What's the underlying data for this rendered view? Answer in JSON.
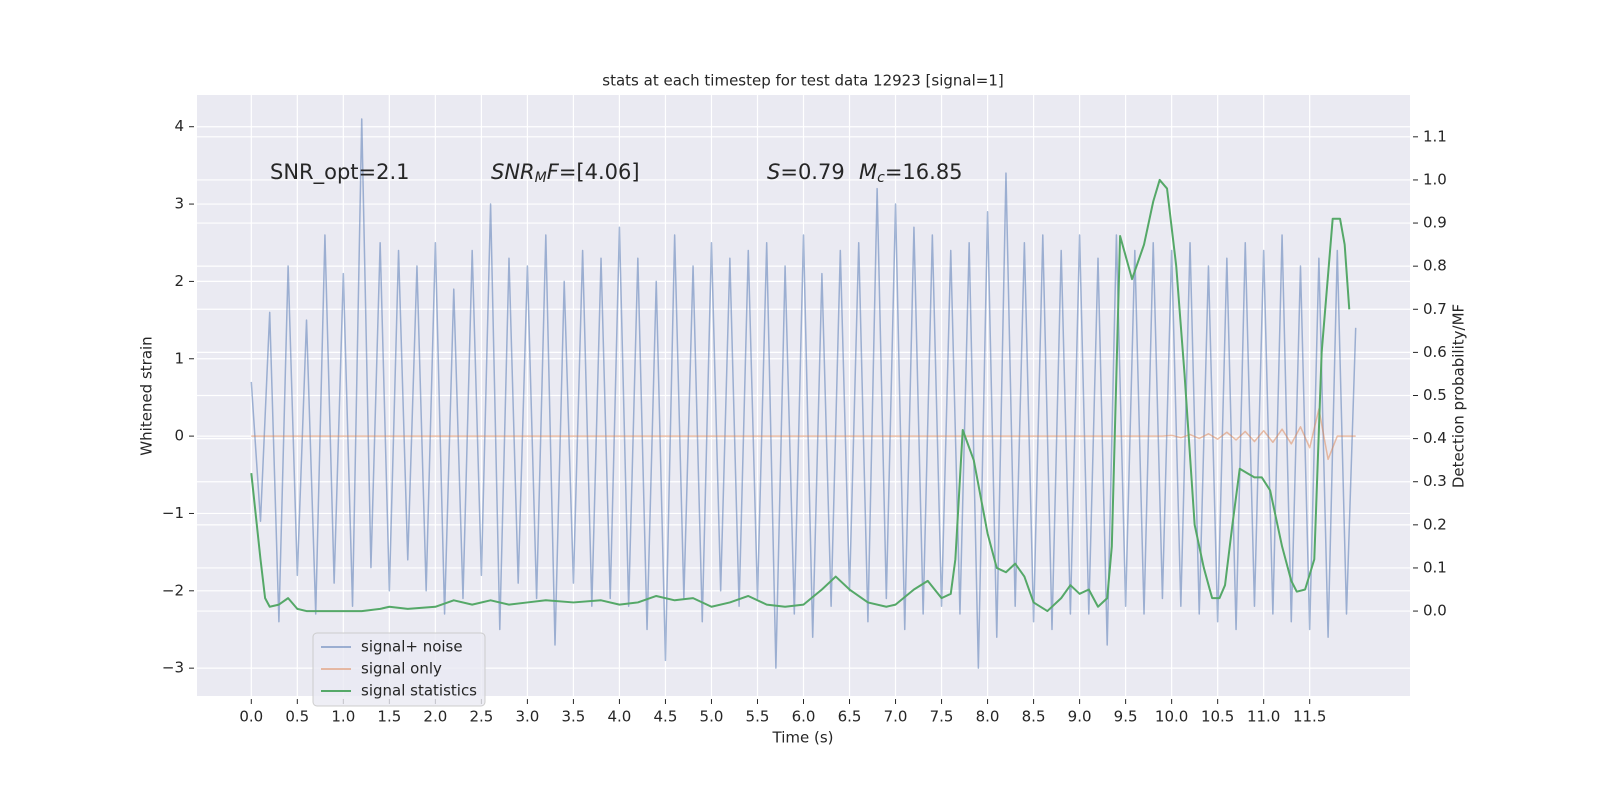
{
  "chart_data": {
    "type": "line",
    "title": "stats at each timestep for test data 12923 [signal=1]",
    "xlabel": "Time (s)",
    "ylabel": "Whitened strain",
    "y2label": "Detection probability/MF",
    "xlim": [
      -0.59,
      12.59
    ],
    "ylim": [
      -3.36,
      4.41
    ],
    "y2lim": [
      -0.197,
      1.197
    ],
    "grid": true,
    "legend": "lower left",
    "xticks": [
      {
        "value": 0,
        "label": "0.0"
      },
      0.5,
      {
        "value": 1,
        "label": "1.0"
      },
      1.5,
      {
        "value": 2,
        "label": "2.0"
      },
      2.5,
      {
        "value": 3,
        "label": "3.0"
      },
      3.5,
      {
        "value": 4,
        "label": "4.0"
      },
      4.5,
      {
        "value": 5,
        "label": "5.0"
      },
      5.5,
      {
        "value": 6,
        "label": "6.0"
      },
      6.5,
      {
        "value": 7,
        "label": "7.0"
      },
      7.5,
      {
        "value": 8,
        "label": "8.0"
      },
      8.5,
      {
        "value": 9,
        "label": "9.0"
      },
      9.5,
      {
        "value": 10,
        "label": "10.0"
      },
      10.5,
      {
        "value": 11,
        "label": "11.0"
      },
      11.5
    ],
    "yticks": [
      {
        "value": -3,
        "label": "−3"
      },
      {
        "value": -2,
        "label": "−2"
      },
      {
        "value": -1,
        "label": "−1"
      },
      0,
      1,
      2,
      3,
      4
    ],
    "y2ticks": [
      {
        "value": 0,
        "label": "0.0"
      },
      0.1,
      0.2,
      0.3,
      0.4,
      0.5,
      0.6,
      0.7,
      0.8,
      0.9,
      {
        "value": 1,
        "label": "1.0"
      },
      1.1
    ],
    "annotations": [
      [
        {
          "text": "SNR_opt=2.1",
          "style": "normal"
        }
      ],
      [
        {
          "text": "SNR",
          "style": "italic"
        },
        {
          "text": "M",
          "style": "sub"
        },
        {
          "text": "F",
          "style": "italic"
        },
        {
          "text": "=[4.06]",
          "style": "normal"
        }
      ],
      [
        {
          "text": "S",
          "style": "italic"
        },
        {
          "text": "=0.79",
          "style": "normal"
        }
      ],
      [
        {
          "text": "M",
          "style": "italic"
        },
        {
          "text": "c",
          "style": "sub"
        },
        {
          "text": "=16.85",
          "style": "normal"
        }
      ]
    ],
    "series": [
      {
        "name": "signal+ noise",
        "color": "#4c72b0",
        "opacity": 0.5,
        "x": [
          0,
          0.1,
          0.2,
          0.3,
          0.4,
          0.5,
          0.6,
          0.7,
          0.8,
          0.9,
          1,
          1.1,
          1.2,
          1.3,
          1.4,
          1.5,
          1.6,
          1.7,
          1.8,
          1.9,
          2,
          2.1,
          2.2,
          2.3,
          2.4,
          2.5,
          2.6,
          2.7,
          2.8,
          2.9,
          3,
          3.1,
          3.2,
          3.3,
          3.4,
          3.5,
          3.6,
          3.7,
          3.8,
          3.9,
          4,
          4.1,
          4.2,
          4.3,
          4.4,
          4.5,
          4.6,
          4.7,
          4.8,
          4.9,
          5,
          5.1,
          5.2,
          5.3,
          5.4,
          5.5,
          5.6,
          5.7,
          5.8,
          5.9,
          6,
          6.1,
          6.2,
          6.3,
          6.4,
          6.5,
          6.6,
          6.7,
          6.8,
          6.9,
          7,
          7.1,
          7.2,
          7.3,
          7.4,
          7.5,
          7.6,
          7.7,
          7.8,
          7.9,
          8,
          8.1,
          8.2,
          8.3,
          8.4,
          8.5,
          8.6,
          8.7,
          8.8,
          8.9,
          9,
          9.1,
          9.2,
          9.3,
          9.4,
          9.5,
          9.6,
          9.7,
          9.8,
          9.9,
          10,
          10.1,
          10.2,
          10.3,
          10.4,
          10.5,
          10.6,
          10.7,
          10.8,
          10.9,
          11,
          11.1,
          11.2,
          11.3,
          11.4,
          11.5,
          11.6,
          11.7,
          11.8,
          11.9,
          12
        ],
        "values": [
          0.7,
          -1.1,
          1.6,
          -2.4,
          2.2,
          -1.8,
          1.5,
          -2.3,
          2.6,
          -1.9,
          2.1,
          -2.2,
          4.1,
          -1.7,
          2.5,
          -2.0,
          2.4,
          -1.6,
          2.2,
          -2.0,
          2.5,
          -2.3,
          1.9,
          -2.1,
          2.4,
          -1.8,
          3.0,
          -2.5,
          2.3,
          -1.9,
          2.2,
          -2.1,
          2.6,
          -2.7,
          2.0,
          -1.9,
          2.4,
          -2.2,
          2.3,
          -2.1,
          2.7,
          -2.2,
          2.3,
          -2.5,
          2.0,
          -2.9,
          2.6,
          -2.1,
          2.2,
          -2.4,
          2.5,
          -2.0,
          2.3,
          -2.2,
          2.4,
          -2.1,
          2.5,
          -3.0,
          2.2,
          -2.3,
          2.6,
          -2.6,
          2.1,
          -2.2,
          2.4,
          -2.0,
          2.5,
          -2.4,
          3.2,
          -2.1,
          3.0,
          -2.5,
          2.7,
          -2.3,
          2.6,
          -2.2,
          2.4,
          -2.3,
          2.5,
          -3.0,
          2.9,
          -2.6,
          3.4,
          -2.2,
          2.5,
          -2.4,
          2.6,
          -2.5,
          2.4,
          -2.3,
          2.6,
          -2.3,
          2.3,
          -2.7,
          2.6,
          -2.2,
          2.4,
          -2.3,
          2.5,
          -2.1,
          2.4,
          -2.2,
          2.5,
          -2.3,
          2.2,
          -2.4,
          2.3,
          -2.5,
          2.5,
          -2.2,
          2.4,
          -2.3,
          2.6,
          -2.4,
          2.2,
          -2.5,
          2.3,
          -2.6,
          2.4,
          -2.3,
          1.4
        ]
      },
      {
        "name": "signal only",
        "color": "#dd8452",
        "opacity": 0.5,
        "x": [
          0,
          0.1,
          0.2,
          0.3,
          0.4,
          0.5,
          0.6,
          0.7,
          0.8,
          0.9,
          1,
          1.1,
          1.2,
          1.3,
          1.4,
          1.5,
          1.6,
          1.7,
          1.8,
          1.9,
          2,
          2.1,
          2.2,
          2.3,
          2.4,
          2.5,
          2.6,
          2.7,
          2.8,
          2.9,
          3,
          3.1,
          3.2,
          3.3,
          3.4,
          3.5,
          3.6,
          3.7,
          3.8,
          3.9,
          4,
          4.1,
          4.2,
          4.3,
          4.4,
          4.5,
          4.6,
          4.7,
          4.8,
          4.9,
          5,
          5.1,
          5.2,
          5.3,
          5.4,
          5.5,
          5.6,
          5.7,
          5.8,
          5.9,
          6,
          6.1,
          6.2,
          6.3,
          6.4,
          6.5,
          6.6,
          6.7,
          6.8,
          6.9,
          7,
          7.1,
          7.2,
          7.3,
          7.4,
          7.5,
          7.6,
          7.7,
          7.8,
          7.9,
          8,
          8.1,
          8.2,
          8.3,
          8.4,
          8.5,
          8.6,
          8.7,
          8.8,
          8.9,
          9,
          9.1,
          9.2,
          9.3,
          9.4,
          9.5,
          9.6,
          9.7,
          9.8,
          9.9,
          10,
          10.1,
          10.2,
          10.3,
          10.4,
          10.5,
          10.6,
          10.7,
          10.8,
          10.9,
          11,
          11.1,
          11.2,
          11.3,
          11.4,
          11.5,
          11.6,
          11.7,
          11.8,
          11.9,
          12
        ],
        "values": [
          0,
          0,
          0,
          0,
          0,
          0,
          0,
          0,
          0,
          0,
          0,
          0,
          0,
          0,
          0,
          0,
          0,
          0,
          0,
          0,
          0,
          0,
          0,
          0,
          0,
          0,
          0,
          0,
          0,
          0,
          0,
          0,
          0,
          0,
          0,
          0,
          0,
          0,
          0,
          0,
          0,
          0,
          0,
          0,
          0,
          0,
          0,
          0,
          0,
          0,
          0,
          0,
          0,
          0,
          0,
          0,
          0,
          0,
          0,
          0,
          0,
          0,
          0,
          0,
          0,
          0,
          0,
          0,
          0,
          0,
          0,
          0,
          0,
          0,
          0,
          0,
          0,
          0,
          0,
          0,
          0,
          0,
          0,
          0,
          0,
          0,
          0,
          0,
          0,
          0,
          0,
          0,
          0,
          0,
          0,
          0,
          0,
          0,
          0,
          0,
          0.01,
          -0.02,
          0.02,
          -0.03,
          0.03,
          -0.04,
          0.05,
          -0.05,
          0.06,
          -0.07,
          0.07,
          -0.08,
          0.09,
          -0.1,
          0.12,
          -0.15,
          0.35,
          -0.3,
          0,
          0,
          0
        ]
      },
      {
        "name": "signal statistics",
        "color": "#55a868",
        "opacity": 1,
        "axis": "y2",
        "x": [
          0,
          0.05,
          0.1,
          0.15,
          0.2,
          0.3,
          0.4,
          0.5,
          0.6,
          0.8,
          1.0,
          1.2,
          1.4,
          1.5,
          1.7,
          2.0,
          2.2,
          2.4,
          2.6,
          2.8,
          3.0,
          3.2,
          3.5,
          3.8,
          4.0,
          4.2,
          4.4,
          4.6,
          4.8,
          5.0,
          5.2,
          5.4,
          5.6,
          5.8,
          6.0,
          6.2,
          6.35,
          6.5,
          6.7,
          6.9,
          7.0,
          7.2,
          7.35,
          7.5,
          7.6,
          7.65,
          7.73,
          7.85,
          8.0,
          8.1,
          8.2,
          8.3,
          8.4,
          8.5,
          8.65,
          8.8,
          8.9,
          9.0,
          9.1,
          9.2,
          9.3,
          9.35,
          9.44,
          9.57,
          9.7,
          9.8,
          9.87,
          9.95,
          10.05,
          10.14,
          10.25,
          10.35,
          10.44,
          10.52,
          10.58,
          10.66,
          10.74,
          10.82,
          10.9,
          10.98,
          11.07,
          11.2,
          11.3,
          11.36,
          11.45,
          11.55,
          11.63,
          11.75,
          11.83,
          11.88,
          11.93
        ],
        "values": [
          0.32,
          0.22,
          0.12,
          0.03,
          0.01,
          0.015,
          0.03,
          0.005,
          0.0,
          0.0,
          0.0,
          0.0,
          0.005,
          0.01,
          0.005,
          0.01,
          0.025,
          0.015,
          0.025,
          0.015,
          0.02,
          0.025,
          0.02,
          0.025,
          0.015,
          0.02,
          0.035,
          0.025,
          0.03,
          0.01,
          0.02,
          0.035,
          0.015,
          0.01,
          0.015,
          0.05,
          0.08,
          0.05,
          0.02,
          0.01,
          0.015,
          0.05,
          0.07,
          0.03,
          0.04,
          0.12,
          0.42,
          0.35,
          0.18,
          0.1,
          0.09,
          0.11,
          0.08,
          0.02,
          0.0,
          0.03,
          0.06,
          0.04,
          0.05,
          0.01,
          0.03,
          0.15,
          0.87,
          0.77,
          0.85,
          0.95,
          1.0,
          0.98,
          0.8,
          0.55,
          0.2,
          0.1,
          0.03,
          0.03,
          0.06,
          0.2,
          0.33,
          0.32,
          0.31,
          0.31,
          0.28,
          0.15,
          0.07,
          0.045,
          0.05,
          0.12,
          0.6,
          0.91,
          0.91,
          0.85,
          0.7
        ]
      }
    ]
  }
}
